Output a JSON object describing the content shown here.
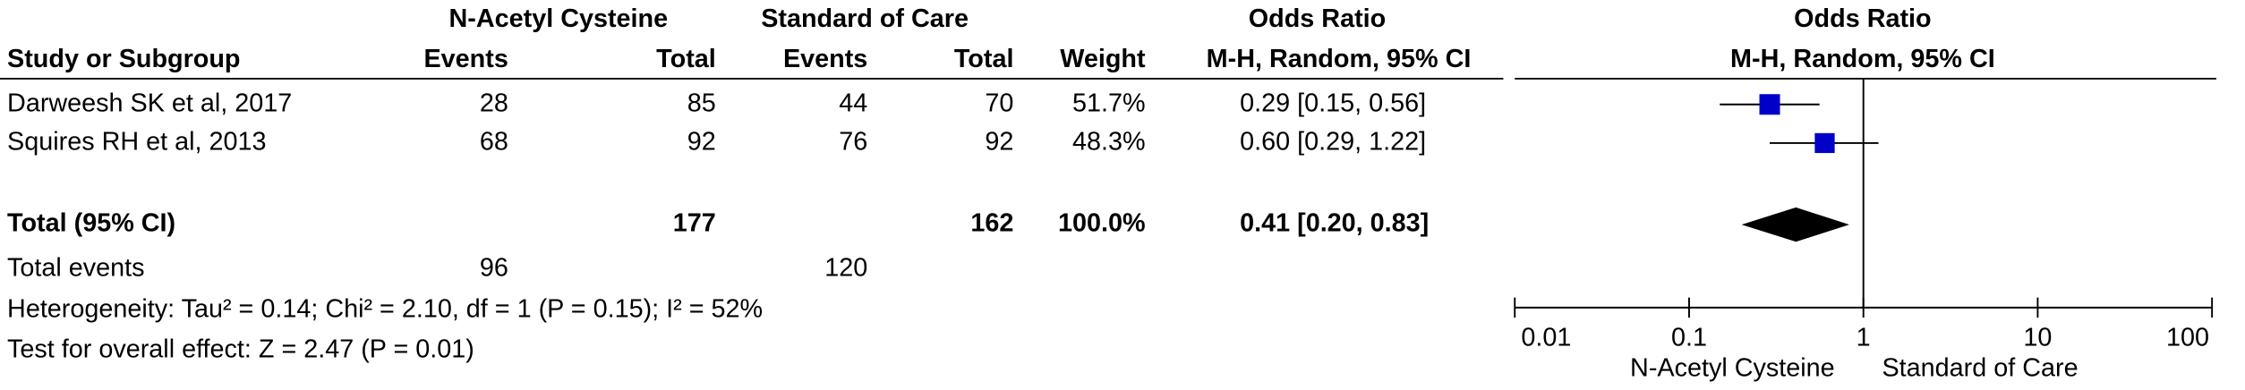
{
  "chart_data": {
    "type": "forest",
    "group_headers": {
      "experimental": "N-Acetyl Cysteine",
      "control": "Standard of Care",
      "effect": "Odds Ratio",
      "plot": "Odds Ratio"
    },
    "column_headers": {
      "study": "Study or Subgroup",
      "exp_events": "Events",
      "exp_total": "Total",
      "ctl_events": "Events",
      "ctl_total": "Total",
      "weight": "Weight",
      "effect": "M-H, Random, 95% CI",
      "plot": "M-H, Random, 95% CI"
    },
    "studies": [
      {
        "name": "Darweesh SK et al, 2017",
        "exp_events": 28,
        "exp_total": 85,
        "ctl_events": 44,
        "ctl_total": 70,
        "weight": {
          "value": 51.7,
          "label": "51.7%"
        },
        "or": 0.29,
        "ci": [
          0.15,
          0.56
        ],
        "or_label": "0.29 [0.15, 0.56]"
      },
      {
        "name": "Squires RH et al, 2013",
        "exp_events": 68,
        "exp_total": 92,
        "ctl_events": 76,
        "ctl_total": 92,
        "weight": {
          "value": 48.3,
          "label": "48.3%"
        },
        "or": 0.6,
        "ci": [
          0.29,
          1.22
        ],
        "or_label": "0.60 [0.29, 1.22]"
      }
    ],
    "total": {
      "name": "Total (95% CI)",
      "exp_total": 177,
      "ctl_total": 162,
      "weight": {
        "value": 100.0,
        "label": "100.0%"
      },
      "or": 0.41,
      "ci": [
        0.2,
        0.83
      ],
      "or_label": "0.41 [0.20, 0.83]"
    },
    "total_events": {
      "label": "Total events",
      "exp_events": 96,
      "ctl_events": 120
    },
    "heterogeneity": "Heterogeneity: Tau² = 0.14; Chi² = 2.10, df = 1 (P = 0.15); I² = 52%",
    "overall_effect": "Test for overall effect: Z = 2.47 (P = 0.01)",
    "xlim": [
      0.01,
      100
    ],
    "xticks": [
      0.01,
      0.1,
      1,
      10,
      100
    ],
    "log_scale": true,
    "reference_line": 1,
    "favours_left": "N-Acetyl Cysteine",
    "favours_right": "Standard of Care",
    "color": "#0000c8",
    "diamond_color": "#000000"
  }
}
